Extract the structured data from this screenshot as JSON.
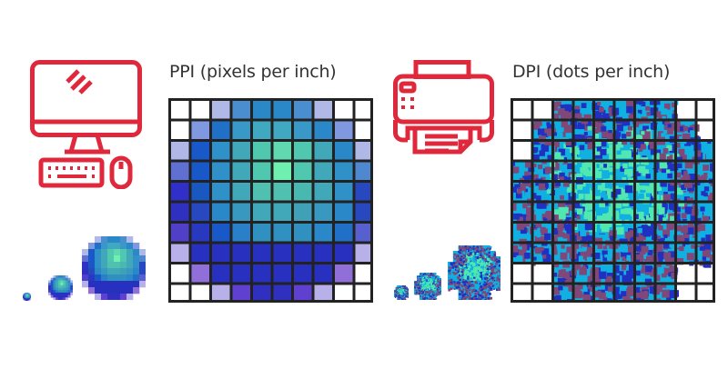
{
  "ppi": {
    "title": "PPI (pixels per inch)",
    "icon": "monitor-keyboard-mouse-icon",
    "grid_cells": [
      [
        "#ffffff",
        "#ffffff",
        "#b0b8e8",
        "#4a8ed0",
        "#2a88c8",
        "#2a88c8",
        "#4a8ed0",
        "#b0b8e8",
        "#ffffff",
        "#ffffff"
      ],
      [
        "#ffffff",
        "#8098e0",
        "#2070c8",
        "#3898c8",
        "#40a8c0",
        "#40a8c0",
        "#3898c8",
        "#2a88c8",
        "#8098e0",
        "#ffffff"
      ],
      [
        "#b0b8e8",
        "#1858c8",
        "#3090c8",
        "#40a8b8",
        "#50c8b0",
        "#60d8b0",
        "#50c8b0",
        "#40a8b8",
        "#2a88c8",
        "#b0b8e8"
      ],
      [
        "#6070d0",
        "#1858c8",
        "#3090c8",
        "#40a8b8",
        "#50c8b0",
        "#70f0b0",
        "#50c8b0",
        "#40a8b8",
        "#3090c8",
        "#5088d0"
      ],
      [
        "#3030c8",
        "#1858c0",
        "#3090c8",
        "#40a8b8",
        "#50c0b0",
        "#50c0b0",
        "#48b8b0",
        "#40a8b8",
        "#3090c8",
        "#2848c0"
      ],
      [
        "#3030c0",
        "#2848c0",
        "#2a88c8",
        "#3898c0",
        "#40a8b8",
        "#40a8b8",
        "#40a0b8",
        "#3898c0",
        "#2a88c8",
        "#2848c0"
      ],
      [
        "#5040c8",
        "#2838c0",
        "#1858c8",
        "#2a80c8",
        "#3090c0",
        "#3090c0",
        "#3090c0",
        "#2a88c8",
        "#2070c8",
        "#5860d0"
      ],
      [
        "#b8b0e8",
        "#2830c0",
        "#2830c0",
        "#2830c0",
        "#2830c0",
        "#2830c0",
        "#2830c0",
        "#2830c0",
        "#2830c0",
        "#b8b0e8"
      ],
      [
        "#ffffff",
        "#9070d8",
        "#2830c0",
        "#2830c0",
        "#2830c0",
        "#2830c0",
        "#2830c0",
        "#2830c0",
        "#9070d8",
        "#ffffff"
      ],
      [
        "#ffffff",
        "#ffffff",
        "#b8b0e8",
        "#6040d0",
        "#3030c0",
        "#3030c0",
        "#6040d0",
        "#b8b0e8",
        "#ffffff",
        "#ffffff"
      ]
    ]
  },
  "dpi": {
    "title": "DPI (dots per inch)",
    "icon": "printer-icon",
    "grid_mask": [
      "..######..",
      ".########.",
      ".#########",
      "##########",
      "##########",
      "##########",
      "##########",
      "##########",
      "..######..",
      "..######.."
    ],
    "dot_colors": {
      "cyan": "#10b0e0",
      "green": "#50e8b0",
      "blue": "#2030c0",
      "purple": "#804878"
    }
  },
  "colors": {
    "icon_red": "#e0283c",
    "grid_line": "#222222",
    "title_text": "#333333"
  }
}
